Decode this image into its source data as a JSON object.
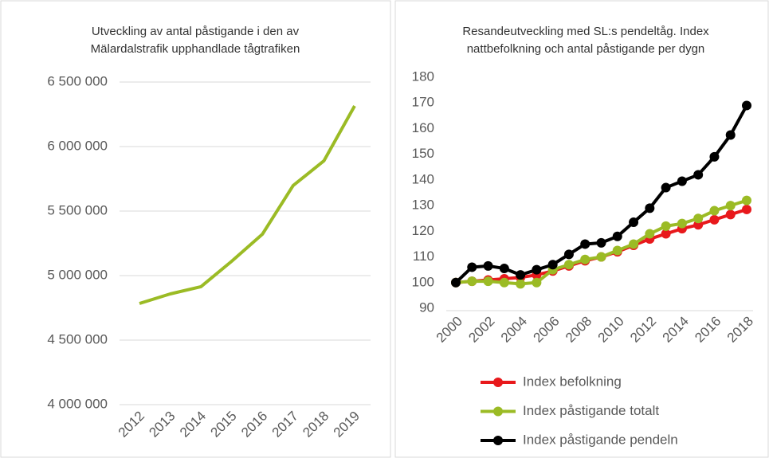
{
  "chart_data": [
    {
      "type": "line",
      "title": [
        "Utveckling av antal påstigande i den av",
        "Mälardalstrafik upphandlade tågtrafiken"
      ],
      "categories": [
        "2012",
        "2013",
        "2014",
        "2015",
        "2016",
        "2017",
        "2018",
        "2019"
      ],
      "series": [
        {
          "name": null,
          "color": "#9bbb25",
          "values": [
            4784000,
            4858000,
            4914000,
            5111000,
            5321000,
            5698000,
            5889000,
            6315000
          ]
        }
      ],
      "ylim": [
        4000000,
        6500000
      ],
      "yticks": [
        {
          "value": 4000000,
          "label": "4 000 000"
        },
        {
          "value": 4500000,
          "label": "4 500 000"
        },
        {
          "value": 5000000,
          "label": "5 000 000"
        },
        {
          "value": 5500000,
          "label": "5 500 000"
        },
        {
          "value": 6000000,
          "label": "6 000 000"
        },
        {
          "value": 6500000,
          "label": "6 500 000"
        }
      ],
      "grid": true,
      "markers": false
    },
    {
      "type": "line",
      "title": [
        "Resandeutveckling med SL:s pendeltåg. Index",
        "nattbefolkning och antal påstigande per dygn"
      ],
      "x": [
        2000,
        2001,
        2002,
        2003,
        2004,
        2005,
        2006,
        2007,
        2008,
        2009,
        2010,
        2011,
        2012,
        2013,
        2014,
        2015,
        2016,
        2017,
        2018
      ],
      "series": [
        {
          "name": "Index befolkning",
          "color": "#e8191c",
          "values": [
            100,
            100.5,
            101,
            101.5,
            102,
            103,
            104.5,
            106.5,
            108.5,
            110,
            112,
            114.5,
            117,
            119,
            121,
            122.5,
            124.5,
            126.5,
            128.5
          ]
        },
        {
          "name": "Index påstigande totalt",
          "color": "#9bbb25",
          "values": [
            100,
            100.5,
            100.5,
            100,
            99.5,
            100,
            105,
            107,
            109,
            110,
            112.5,
            115,
            119,
            122,
            123,
            125,
            128,
            130,
            132
          ]
        },
        {
          "name": "Index påstigande pendeln",
          "color": "#000000",
          "values": [
            100,
            106,
            106.5,
            105.5,
            103,
            105,
            107,
            111,
            115,
            115.5,
            118,
            123.5,
            129,
            137,
            139.5,
            142,
            149,
            157.5,
            169
          ]
        }
      ],
      "xlim": [
        2000,
        2018
      ],
      "xticks": [
        2000,
        2002,
        2004,
        2006,
        2008,
        2010,
        2012,
        2014,
        2016,
        2018
      ],
      "ylim": [
        90,
        180
      ],
      "yticks": [
        90,
        100,
        110,
        120,
        130,
        140,
        150,
        160,
        170,
        180
      ],
      "grid": false,
      "markers": true,
      "legend": "bottom"
    }
  ]
}
